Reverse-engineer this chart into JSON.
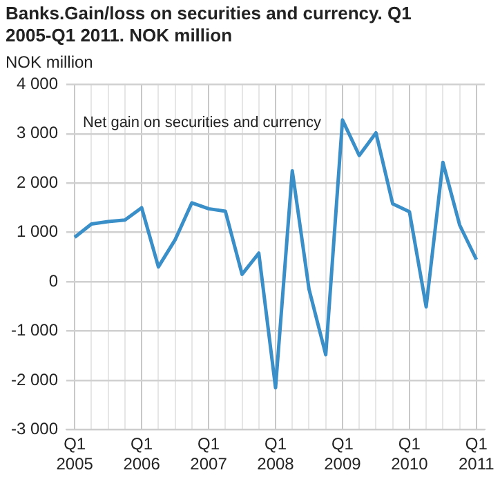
{
  "chart_data": {
    "type": "line",
    "title": "Banks.Gain/loss on securities and currency. Q1 2005-Q1 2011. NOK million",
    "ylabel": "NOK million",
    "categories": [
      "Q1 2005",
      null,
      null,
      null,
      "Q1 2006",
      null,
      null,
      null,
      "Q1 2007",
      null,
      null,
      null,
      "Q1 2008",
      null,
      null,
      null,
      "Q1 2009",
      null,
      null,
      null,
      "Q1 2010",
      null,
      null,
      null,
      "Q1 2011"
    ],
    "series": [
      {
        "name": "Net gain on securities and currency",
        "color": "#3a8fc8",
        "values": [
          900,
          1170,
          1220,
          1250,
          1500,
          300,
          850,
          1600,
          1480,
          1430,
          150,
          580,
          -2150,
          2250,
          -150,
          -1480,
          3280,
          2560,
          3020,
          1580,
          1420,
          -510,
          2420,
          1150,
          450
        ]
      }
    ],
    "ylim": [
      -3000,
      4000
    ],
    "yticks": [
      {
        "value": -3000,
        "label": "-3 000"
      },
      {
        "value": -2000,
        "label": "-2 000"
      },
      {
        "value": -1000,
        "label": "-1 000"
      },
      0,
      {
        "value": 1000,
        "label": "1 000"
      },
      {
        "value": 2000,
        "label": "2 000"
      },
      {
        "value": 3000,
        "label": "3 000"
      },
      {
        "value": 4000,
        "label": "4 000"
      }
    ],
    "grid": true,
    "legend": false,
    "marker": "none"
  }
}
